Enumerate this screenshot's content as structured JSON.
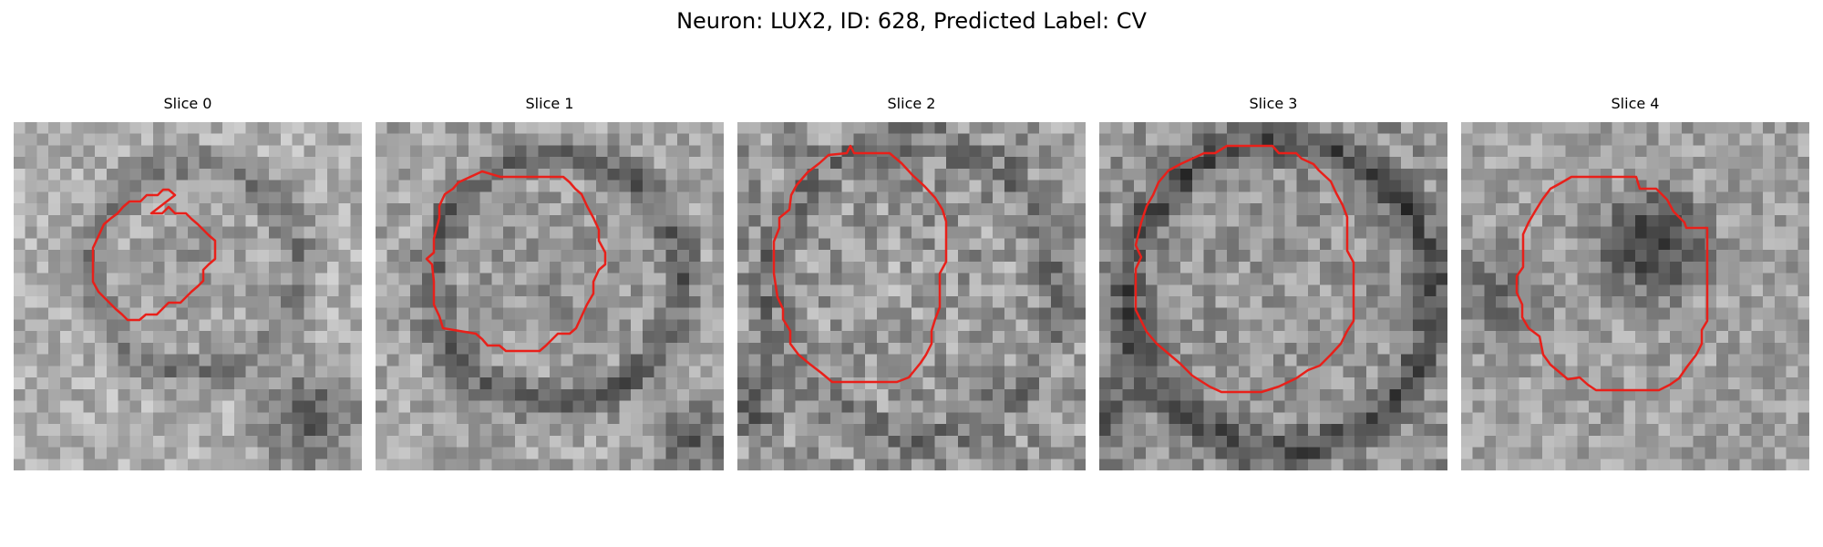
{
  "figure": {
    "title": "Neuron: LUX2, ID: 628, Predicted Label: CV"
  },
  "overlay": {
    "contour_color": "#e8201a"
  },
  "slices": [
    {
      "title": "Slice 0"
    },
    {
      "title": "Slice 1"
    },
    {
      "title": "Slice 2"
    },
    {
      "title": "Slice 3"
    },
    {
      "title": "Slice 4"
    }
  ]
}
